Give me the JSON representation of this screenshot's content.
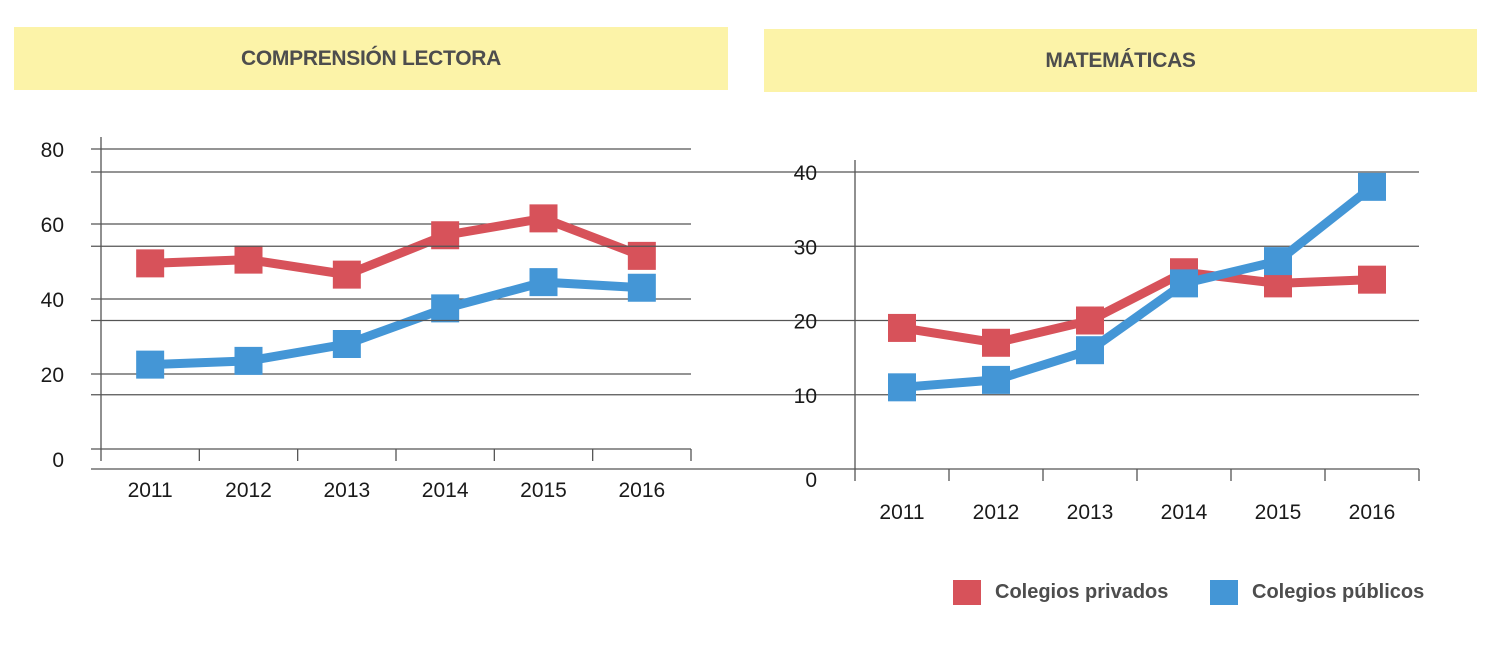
{
  "colors": {
    "private": "#d7525a",
    "public": "#4496d6",
    "title_bg": "#fcf3a8"
  },
  "legend": {
    "private_label": "Colegios privados",
    "public_label": "Colegios públicos"
  },
  "chart_data": [
    {
      "type": "line",
      "title": "COMPRENSIÓN LECTORA",
      "categories": [
        "2011",
        "2012",
        "2013",
        "2014",
        "2015",
        "2016"
      ],
      "ylim": [
        0,
        80
      ],
      "yticks": [
        0,
        20,
        40,
        60,
        80
      ],
      "grid": true,
      "legend_position": "bottom-right",
      "series": [
        {
          "name": "Colegios privados",
          "values": [
            49.5,
            50.5,
            46.5,
            57,
            61.5,
            51.5
          ]
        },
        {
          "name": "Colegios públicos",
          "values": [
            22.5,
            23.5,
            28,
            37.5,
            44.5,
            43
          ]
        }
      ]
    },
    {
      "type": "line",
      "title": "MATEMÁTICAS",
      "categories": [
        "2011",
        "2012",
        "2013",
        "2014",
        "2015",
        "2016"
      ],
      "ylim": [
        0,
        40
      ],
      "yticks": [
        0,
        10,
        20,
        30,
        40
      ],
      "grid": true,
      "legend_position": "bottom-right",
      "series": [
        {
          "name": "Colegios privados",
          "values": [
            19,
            17,
            20,
            26.5,
            25,
            25.5
          ]
        },
        {
          "name": "Colegios públicos",
          "values": [
            11,
            12,
            16,
            25,
            28,
            38
          ]
        }
      ]
    }
  ]
}
